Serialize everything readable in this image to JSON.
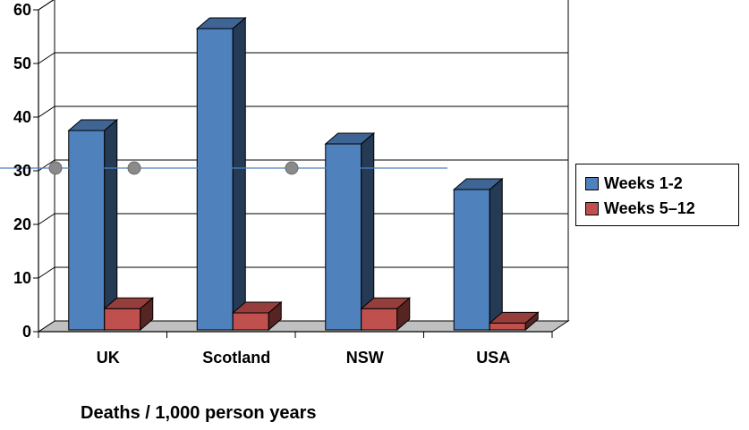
{
  "chart_data": {
    "type": "bar",
    "categories": [
      "UK",
      "Scotland",
      "NSW",
      "USA"
    ],
    "series": [
      {
        "name": "Weeks 1-2",
        "values": [
          37.5,
          56.5,
          35,
          26.5
        ],
        "color": "#4F81BD"
      },
      {
        "name": "Weeks 5–12",
        "values": [
          4.3,
          3.5,
          4.3,
          1.6
        ],
        "color": "#C0504D"
      }
    ],
    "ylim": [
      0,
      60
    ],
    "yticks": [
      0,
      10,
      20,
      30,
      40,
      50,
      60
    ],
    "grid": true,
    "legend": "right",
    "xlabel": "Deaths / 1,000 person years",
    "reference_line": {
      "y": 30.5,
      "color": "#4F81BD"
    }
  }
}
